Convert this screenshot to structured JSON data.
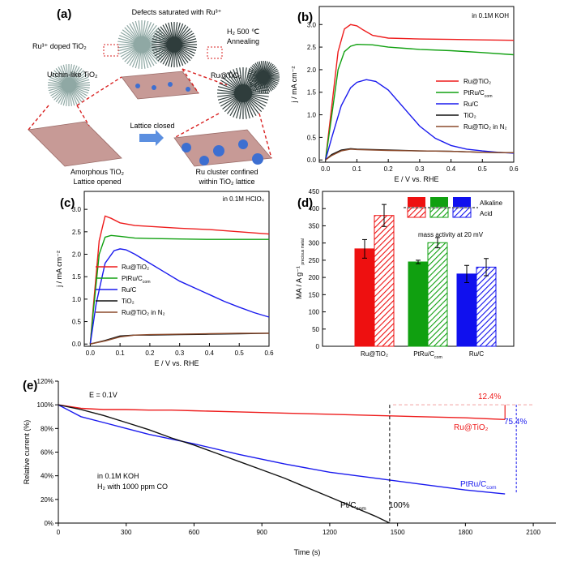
{
  "panel_a": {
    "label": "(a)",
    "texts": {
      "defects": "Defects saturated with Ru³⁺",
      "doped": "Ru³⁺ doped TiO₂",
      "h2": "H₂ 500 ℃",
      "annealing": "Annealing",
      "urchin": "Urchin-like TiO₂",
      "ru_tio2": "Ru@TiO₂",
      "lattice_closed": "Lattice closed",
      "amorphous1": "Amorphous TiO₂",
      "amorphous2": "Lattice opened",
      "cluster1": "Ru cluster confined",
      "cluster2": "within TiO₂ lattice"
    },
    "colors": {
      "urchin_light": "#8fa8a4",
      "urchin_dark": "#2f3d3c",
      "lattice": "#c79a96",
      "cluster": "#3d6fd1",
      "arrow": "#5b8fe0",
      "dash": "#d92020"
    }
  },
  "chart_data": [
    {
      "panel": "(b)",
      "type": "line",
      "annotation": "in 0.1M KOH",
      "xlabel": "E / V vs. RHE",
      "ylabel": "j / mA cm⁻²",
      "xlim": [
        -0.02,
        0.6
      ],
      "ylim": [
        -0.05,
        3.4
      ],
      "xticks": [
        "0.0",
        "0.1",
        "0.2",
        "0.3",
        "0.4",
        "0.5",
        "0.6"
      ],
      "yticks": [
        "0.0",
        "0.5",
        "1.0",
        "1.5",
        "2.0",
        "2.5",
        "3.0"
      ],
      "legend_position": "right",
      "series": [
        {
          "name": "Ru@TiO₂",
          "color": "#ee1c1c",
          "x": [
            0,
            0.02,
            0.04,
            0.06,
            0.08,
            0.1,
            0.12,
            0.15,
            0.2,
            0.3,
            0.4,
            0.5,
            0.6
          ],
          "y": [
            0,
            1.2,
            2.4,
            2.9,
            3.0,
            2.97,
            2.88,
            2.76,
            2.7,
            2.68,
            2.67,
            2.66,
            2.65
          ]
        },
        {
          "name": "PtRu/C_com",
          "color": "#10a010",
          "x": [
            0,
            0.02,
            0.04,
            0.06,
            0.08,
            0.1,
            0.15,
            0.2,
            0.3,
            0.4,
            0.5,
            0.6
          ],
          "y": [
            0,
            1.0,
            2.0,
            2.4,
            2.52,
            2.56,
            2.55,
            2.5,
            2.45,
            2.42,
            2.38,
            2.33
          ]
        },
        {
          "name": "Ru/C",
          "color": "#1a1aee",
          "x": [
            0,
            0.02,
            0.05,
            0.08,
            0.1,
            0.13,
            0.16,
            0.2,
            0.25,
            0.3,
            0.35,
            0.4,
            0.45,
            0.5,
            0.55,
            0.6
          ],
          "y": [
            0,
            0.5,
            1.2,
            1.6,
            1.72,
            1.78,
            1.74,
            1.55,
            1.15,
            0.75,
            0.48,
            0.32,
            0.24,
            0.2,
            0.17,
            0.15
          ]
        },
        {
          "name": "TiO₂",
          "color": "#111111",
          "x": [
            0,
            0.02,
            0.05,
            0.08,
            0.1,
            0.2,
            0.3,
            0.4,
            0.5,
            0.6
          ],
          "y": [
            0,
            0.12,
            0.22,
            0.25,
            0.24,
            0.22,
            0.2,
            0.19,
            0.17,
            0.16
          ]
        },
        {
          "name": "Ru@TiO₂ in N₂",
          "color": "#8b4a2b",
          "x": [
            0,
            0.02,
            0.05,
            0.08,
            0.1,
            0.2,
            0.3,
            0.4,
            0.5,
            0.6
          ],
          "y": [
            0,
            0.1,
            0.2,
            0.24,
            0.23,
            0.21,
            0.2,
            0.19,
            0.17,
            0.16
          ]
        }
      ]
    },
    {
      "panel": "(c)",
      "type": "line",
      "annotation": "in 0.1M HClO₄",
      "xlabel": "E / V vs. RHE",
      "ylabel": "j / mA cm⁻²",
      "xlim": [
        -0.02,
        0.6
      ],
      "ylim": [
        -0.05,
        3.4
      ],
      "xticks": [
        "0.0",
        "0.1",
        "0.2",
        "0.3",
        "0.4",
        "0.5",
        "0.6"
      ],
      "yticks": [
        "0.0",
        "0.5",
        "1.0",
        "1.5",
        "2.0",
        "2.5",
        "3.0"
      ],
      "legend_position": "middle-left",
      "series": [
        {
          "name": "Ru@TiO₂",
          "color": "#ee1c1c",
          "x": [
            0,
            0.01,
            0.03,
            0.05,
            0.07,
            0.1,
            0.15,
            0.2,
            0.3,
            0.4,
            0.5,
            0.6
          ],
          "y": [
            0,
            0.8,
            2.3,
            2.85,
            2.8,
            2.7,
            2.64,
            2.62,
            2.58,
            2.55,
            2.5,
            2.45
          ]
        },
        {
          "name": "PtRu/C_com",
          "color": "#10a010",
          "x": [
            0,
            0.01,
            0.03,
            0.05,
            0.07,
            0.1,
            0.15,
            0.2,
            0.3,
            0.4,
            0.5,
            0.6
          ],
          "y": [
            0,
            0.7,
            2.0,
            2.38,
            2.42,
            2.4,
            2.36,
            2.35,
            2.34,
            2.33,
            2.33,
            2.33
          ]
        },
        {
          "name": "Ru/C",
          "color": "#1a1aee",
          "x": [
            0,
            0.02,
            0.05,
            0.08,
            0.1,
            0.12,
            0.15,
            0.2,
            0.25,
            0.3,
            0.35,
            0.4,
            0.45,
            0.5,
            0.55,
            0.6
          ],
          "y": [
            0,
            0.9,
            1.8,
            2.08,
            2.12,
            2.1,
            2.0,
            1.8,
            1.6,
            1.4,
            1.25,
            1.1,
            0.95,
            0.82,
            0.7,
            0.6
          ]
        },
        {
          "name": "TiO₂",
          "color": "#111111",
          "x": [
            0,
            0.05,
            0.1,
            0.15,
            0.2,
            0.3,
            0.4,
            0.5,
            0.6
          ],
          "y": [
            0,
            0.08,
            0.18,
            0.2,
            0.2,
            0.21,
            0.22,
            0.23,
            0.24
          ]
        },
        {
          "name": "Ru@TiO₂ in N₂",
          "color": "#8b4a2b",
          "x": [
            0,
            0.05,
            0.1,
            0.15,
            0.2,
            0.3,
            0.4,
            0.5,
            0.6
          ],
          "y": [
            0,
            0.07,
            0.16,
            0.2,
            0.21,
            0.22,
            0.23,
            0.24,
            0.24
          ]
        }
      ]
    },
    {
      "panel": "(d)",
      "type": "bar",
      "annotation": "mass activity at 20 mV",
      "ylabel": "MA / A g⁻¹",
      "ylabel_sub": "precious metal",
      "ylim": [
        0,
        450
      ],
      "yticks": [
        "0",
        "50",
        "100",
        "150",
        "200",
        "250",
        "300",
        "350",
        "400",
        "450"
      ],
      "categories": [
        "Ru@TiO₂",
        "PtRu/C_com",
        "Ru/C"
      ],
      "legend": [
        "Alkaline",
        "Acid"
      ],
      "colors": [
        "#ee1010",
        "#10a010",
        "#1010ee"
      ],
      "series": [
        {
          "name": "Alkaline",
          "values": [
            283,
            245,
            210
          ],
          "errors": [
            27,
            5,
            25
          ]
        },
        {
          "name": "Acid",
          "values": [
            380,
            301,
            230
          ],
          "errors": [
            32,
            15,
            25
          ]
        }
      ]
    },
    {
      "panel": "(e)",
      "type": "line",
      "annotation_e": "E = 0.1V",
      "conditions_1": "in 0.1M KOH",
      "conditions_2": "H₂ with 1000 ppm CO",
      "xlabel": "Time (s)",
      "ylabel": "Relative current (%)",
      "xlim": [
        0,
        2200
      ],
      "ylim": [
        0,
        120
      ],
      "xticks": [
        "0",
        "300",
        "600",
        "900",
        "1200",
        "1500",
        "1800",
        "2100"
      ],
      "yticks": [
        "0%",
        "20%",
        "40%",
        "60%",
        "80%",
        "100%",
        "120%"
      ],
      "labels": {
        "loss_ru": "12.4%",
        "loss_ptru": "75.4%",
        "loss_pt": "100%",
        "ru": "Ru@TiO₂",
        "ptru": "PtRu/C_com",
        "pt": "Pt/C_com"
      },
      "series": [
        {
          "name": "Ru@TiO₂",
          "color": "#ee1c1c",
          "x": [
            0,
            100,
            200,
            300,
            400,
            500,
            600,
            800,
            1000,
            1200,
            1400,
            1600,
            1800,
            1975
          ],
          "y": [
            100,
            97,
            96,
            96,
            95.5,
            95.5,
            95,
            94,
            93,
            92,
            91,
            90,
            89,
            87.6
          ]
        },
        {
          "name": "PtRu/C_com",
          "color": "#1a1aee",
          "x": [
            0,
            100,
            200,
            300,
            400,
            600,
            800,
            1000,
            1200,
            1400,
            1600,
            1800,
            1975
          ],
          "y": [
            100,
            90,
            85,
            80,
            75,
            67,
            58,
            50,
            43,
            38,
            33,
            28,
            24.6
          ]
        },
        {
          "name": "Pt/C_com",
          "color": "#111111",
          "x": [
            0,
            100,
            200,
            300,
            400,
            500,
            600,
            700,
            800,
            900,
            1000,
            1100,
            1200,
            1300,
            1400,
            1465
          ],
          "y": [
            100,
            96,
            91,
            85,
            79,
            72,
            66,
            59,
            52,
            45,
            38,
            30,
            22,
            14,
            6,
            0
          ]
        }
      ]
    }
  ]
}
